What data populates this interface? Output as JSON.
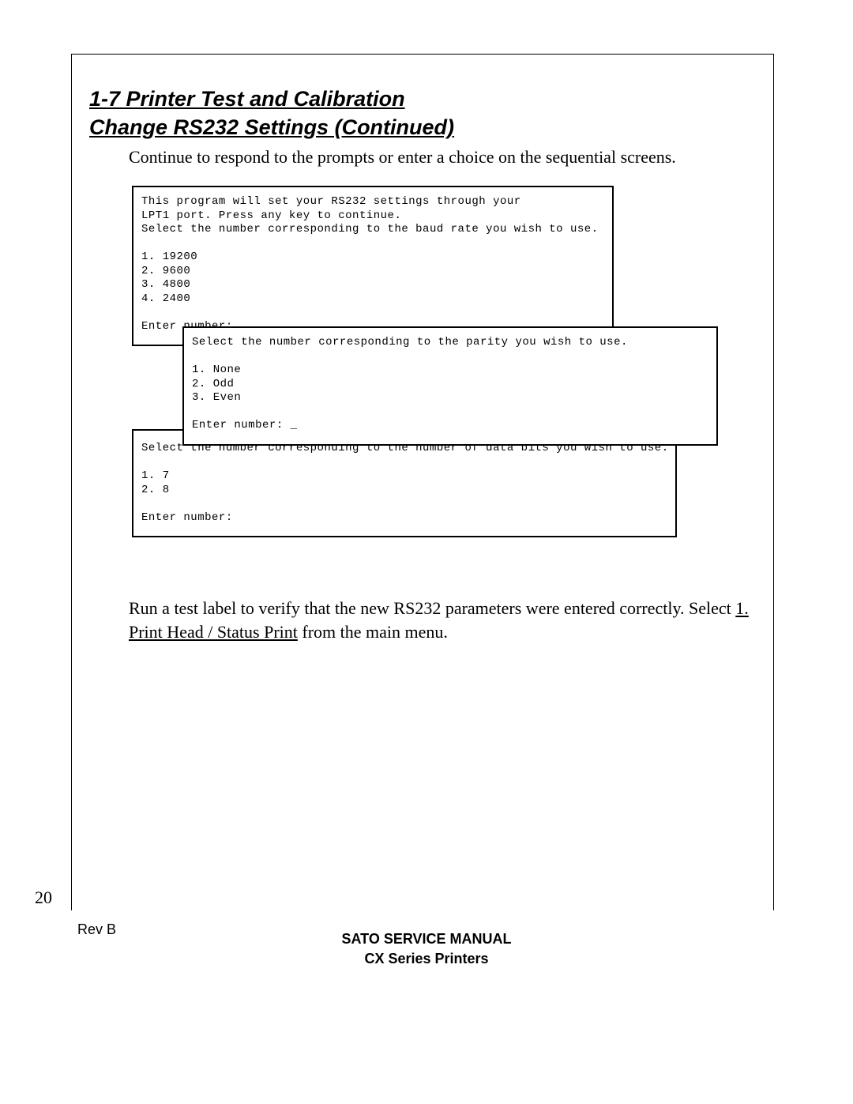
{
  "heading": {
    "line1": "1-7  Printer Test and Calibration",
    "line2": "Change RS232 Settings (Continued)"
  },
  "intro": "Continue to respond to the prompts or enter a choice on the sequential screens.",
  "screens": {
    "screen1": "This program will set your RS232 settings through your\nLPT1 port. Press any key to continue.\nSelect the number corresponding to the baud rate you wish to use.\n\n1. 19200\n2. 9600\n3. 4800\n4. 2400\n\nEnter number:",
    "screen2": "Select the number corresponding to the parity you wish to use.\n\n1. None\n2. Odd\n3. Even\n\nEnter number: _",
    "screen3": "Select the number corresponding to the number of data bits you wish to use.\n\n1. 7\n2. 8\n\nEnter number:"
  },
  "after": {
    "prefix": "Run a test label to verify that the new RS232 parameters were entered correctly.  Select ",
    "underlined": "1. Print Head / Status Print",
    "suffix": " from the main menu."
  },
  "page_number": "20",
  "revision": "Rev B",
  "footer": {
    "line1": "SATO SERVICE MANUAL",
    "line2": "CX Series Printers"
  }
}
